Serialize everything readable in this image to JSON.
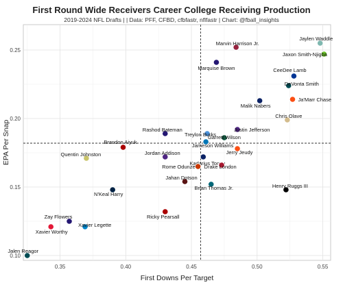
{
  "chart_data": {
    "type": "scatter",
    "title": "First Round Wide Receivers Career College Receiving Production",
    "subtitle": "2019-2024 NFL Drafts | | Data: PFF, CFBD, cfbfastr, nflfastr | Chart: @fball_insights",
    "xlabel": "First Downs Per Target",
    "ylabel": "EPA Per Snap",
    "xlim": [
      0.322,
      0.556
    ],
    "ylim": [
      0.0965,
      0.2685
    ],
    "xticks": [
      0.35,
      0.4,
      0.45,
      0.5,
      0.55
    ],
    "yticks": [
      0.1,
      0.15,
      0.2,
      0.25
    ],
    "xtick_labels": [
      "0.35",
      "0.40",
      "0.45",
      "0.50",
      "0.55"
    ],
    "ytick_labels": [
      "0.10",
      "0.15",
      "0.20",
      "0.25"
    ],
    "reference_lines": {
      "x": 0.457,
      "y": 0.182
    },
    "grid": true,
    "points": [
      {
        "name": "Jaylen Waddle",
        "x": 0.548,
        "y": 0.255,
        "color": "#7fb8b0"
      },
      {
        "name": "Marvin Harrison Jr.",
        "x": 0.484,
        "y": 0.252,
        "color": "#97233f"
      },
      {
        "name": "Jaxon Smith-Njigba",
        "x": 0.551,
        "y": 0.247,
        "color": "#69be28"
      },
      {
        "name": "Marquise Brown",
        "x": 0.469,
        "y": 0.241,
        "color": "#241773"
      },
      {
        "name": "CeeDee Lamb",
        "x": 0.528,
        "y": 0.231,
        "color": "#003594"
      },
      {
        "name": "DeVonta Smith",
        "x": 0.524,
        "y": 0.224,
        "color": "#004c54"
      },
      {
        "name": "Malik Nabers",
        "x": 0.502,
        "y": 0.213,
        "color": "#0b2265"
      },
      {
        "name": "Ja'Marr Chase",
        "x": 0.527,
        "y": 0.214,
        "color": "#fb4f14"
      },
      {
        "name": "Chris Olave",
        "x": 0.523,
        "y": 0.199,
        "color": "#d3bc8d"
      },
      {
        "name": "Garrett Wilson",
        "x": 0.475,
        "y": 0.186,
        "color": "#125740"
      },
      {
        "name": "Justin Jefferson",
        "x": 0.485,
        "y": 0.192,
        "color": "#4f2683"
      },
      {
        "name": "Rashod Bateman",
        "x": 0.43,
        "y": 0.189,
        "color": "#241773"
      },
      {
        "name": "Treylon Burks",
        "x": 0.462,
        "y": 0.189,
        "color": "#4b92db"
      },
      {
        "name": "Jameson Williams",
        "x": 0.461,
        "y": 0.183,
        "color": "#0076b6"
      },
      {
        "name": "Brandon Aiyuk",
        "x": 0.398,
        "y": 0.179,
        "color": "#aa0000"
      },
      {
        "name": "Jerry Jeudy",
        "x": 0.485,
        "y": 0.178,
        "color": "#fb4f14"
      },
      {
        "name": "Quentin Johnston",
        "x": 0.37,
        "y": 0.171,
        "color": "#c9c46a"
      },
      {
        "name": "Jordan Addison",
        "x": 0.43,
        "y": 0.172,
        "color": "#4f2683"
      },
      {
        "name": "Kadarius Toney",
        "x": 0.459,
        "y": 0.172,
        "color": "#0b2265"
      },
      {
        "name": "Drake London",
        "x": 0.473,
        "y": 0.166,
        "color": "#a71930"
      },
      {
        "name": "Rome Odunze",
        "x": 0.455,
        "y": 0.165,
        "color": "#c83803"
      },
      {
        "name": "Jahan Dotson",
        "x": 0.445,
        "y": 0.154,
        "color": "#5a1414"
      },
      {
        "name": "Brian Thomas Jr.",
        "x": 0.465,
        "y": 0.152,
        "color": "#006778"
      },
      {
        "name": "Henry Ruggs III",
        "x": 0.522,
        "y": 0.148,
        "color": "#000000"
      },
      {
        "name": "N'Keal Harry",
        "x": 0.39,
        "y": 0.148,
        "color": "#002244"
      },
      {
        "name": "Ricky Pearsall",
        "x": 0.43,
        "y": 0.132,
        "color": "#aa0000"
      },
      {
        "name": "Zay Flowers",
        "x": 0.357,
        "y": 0.125,
        "color": "#241773"
      },
      {
        "name": "Xavier Legette",
        "x": 0.369,
        "y": 0.121,
        "color": "#0085ca"
      },
      {
        "name": "Xavier Worthy",
        "x": 0.343,
        "y": 0.121,
        "color": "#e31837"
      },
      {
        "name": "Jalen Reagor",
        "x": 0.325,
        "y": 0.1,
        "color": "#004c54"
      }
    ]
  }
}
